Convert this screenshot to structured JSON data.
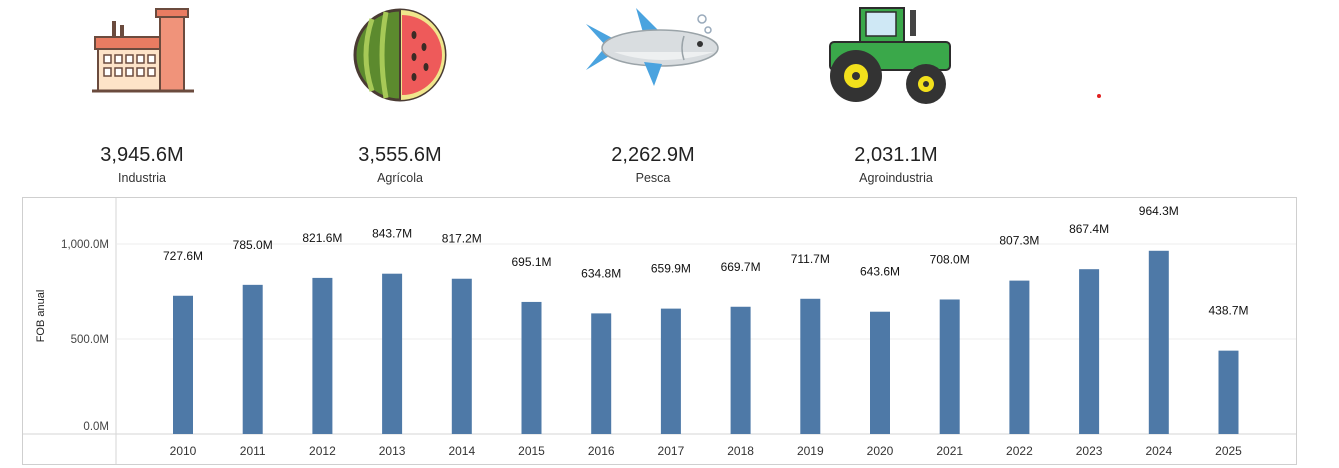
{
  "kpis": [
    {
      "value": "3,945.6M",
      "label": "Industria",
      "icon": "factory-icon"
    },
    {
      "value": "3,555.6M",
      "label": "Agrícola",
      "icon": "watermelon-icon"
    },
    {
      "value": "2,262.9M",
      "label": "Pesca",
      "icon": "fish-icon"
    },
    {
      "value": "2,031.1M",
      "label": "Agroindustria",
      "icon": "tractor-icon"
    }
  ],
  "colors": {
    "bar": "#4e79a7",
    "accent_dot": "#e02020"
  },
  "chart_data": {
    "type": "bar",
    "categories": [
      "2010",
      "2011",
      "2012",
      "2013",
      "2014",
      "2015",
      "2016",
      "2017",
      "2018",
      "2019",
      "2020",
      "2021",
      "2022",
      "2023",
      "2024",
      "2025"
    ],
    "values": [
      727.6,
      785.0,
      821.6,
      843.7,
      817.2,
      695.1,
      634.8,
      659.9,
      669.7,
      711.7,
      643.6,
      708.0,
      807.3,
      867.4,
      964.3,
      438.7
    ],
    "data_labels": [
      "727.6M",
      "785.0M",
      "821.6M",
      "843.7M",
      "817.2M",
      "695.1M",
      "634.8M",
      "659.9M",
      "669.7M",
      "711.7M",
      "643.6M",
      "708.0M",
      "807.3M",
      "867.4M",
      "964.3M",
      "438.7M"
    ],
    "ylabel": "FOB anual",
    "xlabel": "",
    "y_ticks": [
      0,
      500,
      1000
    ],
    "y_tick_labels": [
      "0.0M",
      "500.0M",
      "1,000.0M"
    ],
    "ylim": [
      0,
      1200
    ],
    "grid": true
  }
}
